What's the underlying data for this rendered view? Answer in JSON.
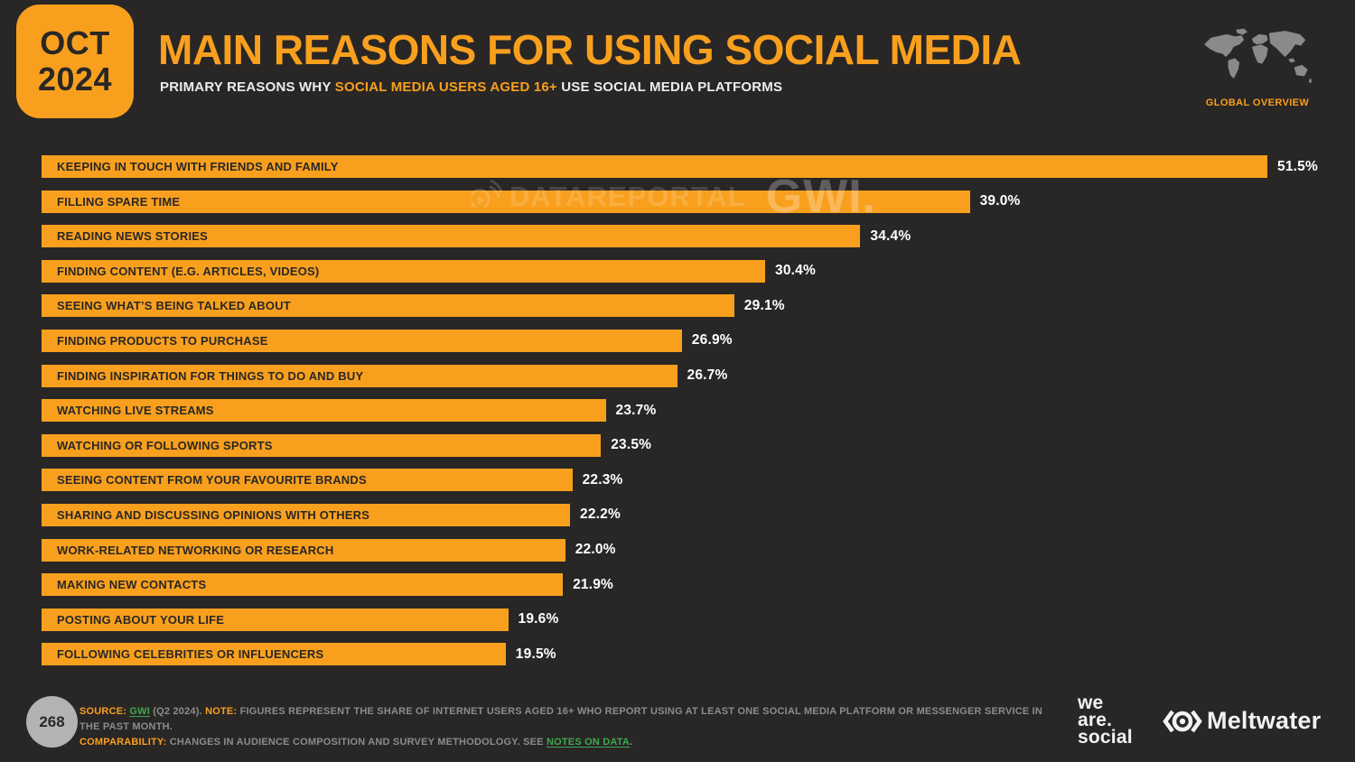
{
  "colors": {
    "background": "#292626",
    "accent_orange": "#F8A01E",
    "bar_label_dark": "#2A2725",
    "value_label_white": "#FFFFFF",
    "footer_gray": "#8C8C8C",
    "link_green": "#3EA94C",
    "map_gray": "#8A8A8A",
    "page_circle_gray": "#B3B3B3"
  },
  "header": {
    "badge_month": "OCT",
    "badge_year": "2024",
    "title": "MAIN REASONS FOR USING SOCIAL MEDIA",
    "subtitle_prefix": "PRIMARY REASONS WHY ",
    "subtitle_highlight": "SOCIAL MEDIA USERS AGED 16+",
    "subtitle_suffix": " USE SOCIAL MEDIA PLATFORMS",
    "overview_label": "GLOBAL OVERVIEW"
  },
  "watermark": {
    "brand": "DATAREPORTAL",
    "partner": "GWI."
  },
  "chart_data": {
    "type": "bar",
    "orientation": "horizontal",
    "title": "MAIN REASONS FOR USING SOCIAL MEDIA",
    "unit": "%",
    "xlim": [
      0,
      51.5
    ],
    "grid": false,
    "legend": false,
    "bar_color": "#F8A01E",
    "categories": [
      "KEEPING IN TOUCH WITH FRIENDS AND FAMILY",
      "FILLING SPARE TIME",
      "READING NEWS STORIES",
      "FINDING CONTENT (E.G. ARTICLES, VIDEOS)",
      "SEEING WHAT’S BEING TALKED ABOUT",
      "FINDING PRODUCTS TO PURCHASE",
      "FINDING INSPIRATION FOR THINGS TO DO AND BUY",
      "WATCHING LIVE STREAMS",
      "WATCHING OR FOLLOWING SPORTS",
      "SEEING CONTENT FROM YOUR FAVOURITE BRANDS",
      "SHARING AND DISCUSSING OPINIONS WITH OTHERS",
      "WORK-RELATED NETWORKING OR RESEARCH",
      "MAKING NEW CONTACTS",
      "POSTING ABOUT YOUR LIFE",
      "FOLLOWING CELEBRITIES OR INFLUENCERS"
    ],
    "values": [
      51.5,
      39.0,
      34.4,
      30.4,
      29.1,
      26.9,
      26.7,
      23.7,
      23.5,
      22.3,
      22.2,
      22.0,
      21.9,
      19.6,
      19.5
    ],
    "value_labels": [
      "51.5%",
      "39.0%",
      "34.4%",
      "30.4%",
      "29.1%",
      "26.9%",
      "26.7%",
      "23.7%",
      "23.5%",
      "22.3%",
      "22.2%",
      "22.0%",
      "21.9%",
      "19.6%",
      "19.5%"
    ]
  },
  "footer": {
    "page_number": "268",
    "source_label": "SOURCE:",
    "source_link": "GWI",
    "source_after": " (Q2 2024). ",
    "note_label": "NOTE:",
    "note_text": " FIGURES REPRESENT THE SHARE OF INTERNET USERS AGED 16+ WHO REPORT USING AT LEAST ONE SOCIAL MEDIA PLATFORM OR MESSENGER SERVICE IN THE PAST MONTH.",
    "comparability_label": "COMPARABILITY:",
    "comparability_text": " CHANGES IN AUDIENCE COMPOSITION AND SURVEY METHODOLOGY. SEE ",
    "notes_link": "NOTES ON DATA",
    "comparability_end": ".",
    "we_are_social_line1": "we",
    "we_are_social_line2": "are.",
    "we_are_social_line3": "social",
    "meltwater_label": "Meltwater"
  }
}
